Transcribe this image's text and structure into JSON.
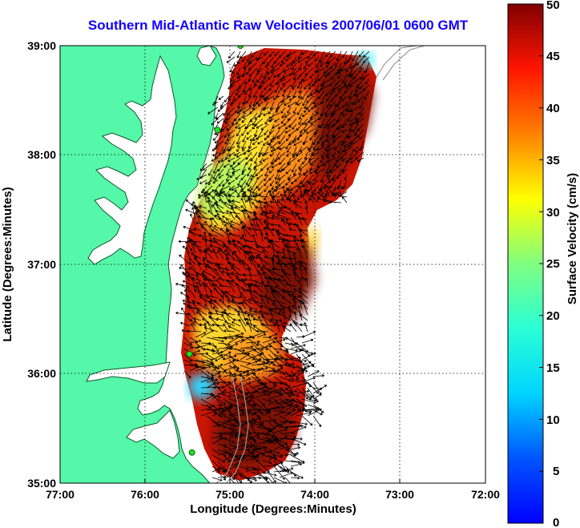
{
  "title": "Southern Mid-Atlantic Raw Velocities 2007/06/01 0600 GMT",
  "x_axis": {
    "label": "Longitude (Degrees:Minutes)",
    "ticks": [
      "77:00",
      "76:00",
      "75:00",
      "74:00",
      "73:00",
      "72:00"
    ]
  },
  "y_axis": {
    "label": "Latitude (Degrees:Minutes)",
    "ticks": [
      "39:00",
      "38:00",
      "37:00",
      "36:00",
      "35:00"
    ]
  },
  "colorbar": {
    "label": "Surface Velocity (cm/s)",
    "ticks": [
      "50",
      "45",
      "40",
      "35",
      "30",
      "25",
      "20",
      "15",
      "10",
      "5",
      "0"
    ],
    "range": [
      0,
      50
    ],
    "colormap": "jet"
  },
  "map": {
    "lon_range": [
      -77,
      -72
    ],
    "lat_range": [
      35,
      39
    ],
    "grid": true,
    "land_color": "#55f7a8",
    "water_color": "#ffffff",
    "vector_color": "#000000",
    "station_color": "#22dd22",
    "stations": [
      {
        "lon": -74.88,
        "lat": 39.0
      },
      {
        "lon": -75.15,
        "lat": 38.23
      },
      {
        "lon": -75.48,
        "lat": 36.18
      },
      {
        "lon": -75.45,
        "lat": 35.28
      }
    ]
  }
}
